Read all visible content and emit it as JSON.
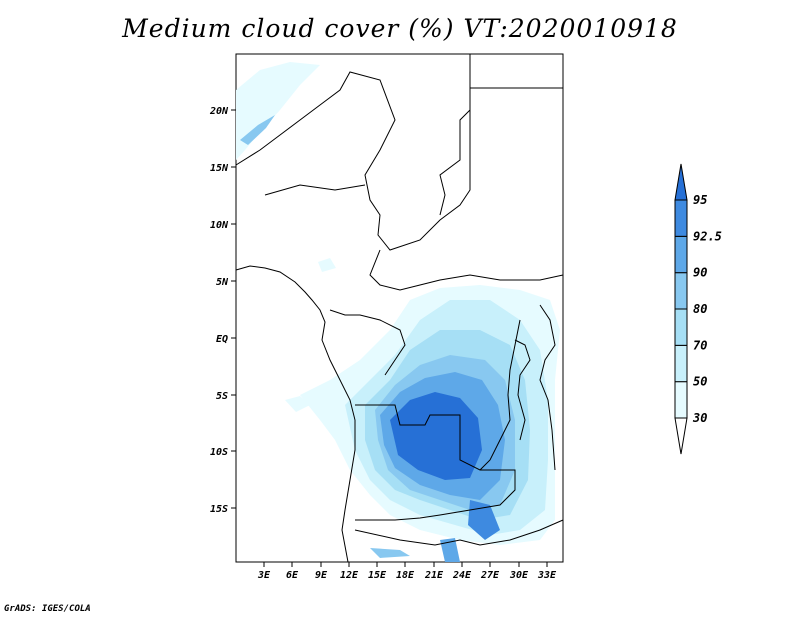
{
  "title": "Medium cloud cover (%) VT:2020010918",
  "credit": "GrADS: IGES/COLA",
  "lat_labels": [
    "20N",
    "15N",
    "10N",
    "5N",
    "EQ",
    "5S",
    "10S",
    "15S"
  ],
  "lon_labels": [
    "3E",
    "6E",
    "9E",
    "12E",
    "15E",
    "18E",
    "21E",
    "24E",
    "27E",
    "30E",
    "33E"
  ],
  "colorbar": {
    "levels": [
      "30",
      "50",
      "70",
      "80",
      "90",
      "92.5",
      "95"
    ],
    "colors": [
      "#e6fbff",
      "#c8f0fb",
      "#a6dff5",
      "#88c8f0",
      "#5ea8e8",
      "#3e8ae0",
      "#2670d6"
    ]
  }
}
